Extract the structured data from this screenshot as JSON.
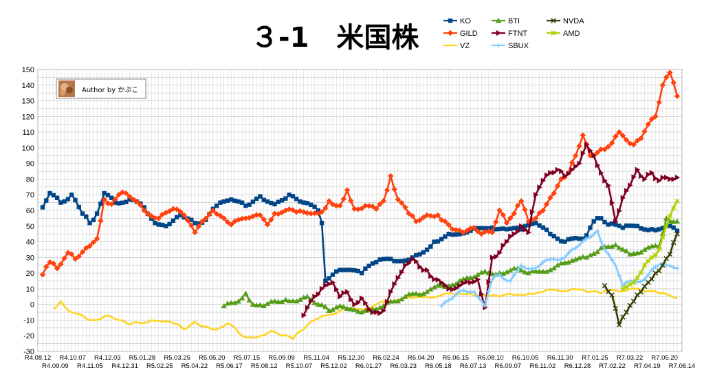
{
  "chart_data": {
    "type": "line",
    "title": "３-1　米国株",
    "author": "Author by かぷこ",
    "ylim": [
      -30,
      150
    ],
    "ystep": 10,
    "n_points": 176,
    "grid": true,
    "legend_position": "top-right",
    "x_tick_labels": [
      "R4.08.12",
      "R4.09.09",
      "R4.10.07",
      "R4.11.05",
      "R4.12.03",
      "R4.12.31",
      "R5.01.28",
      "R5.02.25",
      "R5.03.25",
      "R5.04.22",
      "R5.05.20",
      "R5.06.17",
      "R5.07.15",
      "R5.08.12",
      "R5.09.09",
      "R5.10.07",
      "R5.11.04",
      "R5.12.02",
      "R5.12.30",
      "R6.01.27",
      "R6.02.24",
      "R6.03.23",
      "R6.04.20",
      "R6.05.18",
      "R6.06.15",
      "R6.07.13",
      "R6.08.10",
      "R6.09.07",
      "R6.10.05",
      "R6.11.02",
      "R6.11.30",
      "R6.12.28",
      "R7.01.25",
      "R7.02.22",
      "R7.03.22",
      "R7.04.19",
      "R7.05.20",
      "R7.06.14"
    ],
    "series": [
      {
        "name": "KO",
        "color": "#004586",
        "marker": "square",
        "start": 0,
        "anchors": [
          [
            0,
            62
          ],
          [
            2,
            71
          ],
          [
            5,
            65
          ],
          [
            8,
            70
          ],
          [
            11,
            58
          ],
          [
            13,
            52
          ],
          [
            15,
            58
          ],
          [
            17,
            71
          ],
          [
            20,
            65
          ],
          [
            24,
            67
          ],
          [
            28,
            62
          ],
          [
            31,
            52
          ],
          [
            34,
            50
          ],
          [
            38,
            57
          ],
          [
            42,
            52
          ],
          [
            45,
            54
          ],
          [
            48,
            63
          ],
          [
            52,
            67
          ],
          [
            56,
            63
          ],
          [
            60,
            69
          ],
          [
            64,
            64
          ],
          [
            68,
            70
          ],
          [
            72,
            65
          ],
          [
            76,
            60
          ],
          [
            77,
            52
          ],
          [
            78,
            15
          ],
          [
            82,
            22
          ],
          [
            88,
            20
          ],
          [
            92,
            27
          ],
          [
            96,
            29
          ],
          [
            100,
            28
          ],
          [
            104,
            32
          ],
          [
            108,
            40
          ],
          [
            112,
            45
          ],
          [
            118,
            47
          ],
          [
            124,
            49
          ],
          [
            128,
            48
          ],
          [
            132,
            48
          ],
          [
            136,
            52
          ],
          [
            140,
            45
          ],
          [
            144,
            40
          ],
          [
            148,
            42
          ],
          [
            150,
            44
          ],
          [
            152,
            53
          ],
          [
            154,
            55
          ],
          [
            156,
            51
          ],
          [
            160,
            49
          ],
          [
            164,
            50
          ],
          [
            168,
            48
          ],
          [
            172,
            50
          ],
          [
            175,
            47
          ]
        ]
      },
      {
        "name": "GILD",
        "color": "#ff420e",
        "marker": "diamond",
        "start": 0,
        "anchors": [
          [
            0,
            19
          ],
          [
            2,
            27
          ],
          [
            4,
            23
          ],
          [
            7,
            33
          ],
          [
            9,
            29
          ],
          [
            12,
            36
          ],
          [
            15,
            42
          ],
          [
            17,
            67
          ],
          [
            19,
            64
          ],
          [
            21,
            70
          ],
          [
            23,
            71
          ],
          [
            25,
            67
          ],
          [
            28,
            60
          ],
          [
            32,
            55
          ],
          [
            36,
            61
          ],
          [
            39,
            57
          ],
          [
            42,
            46
          ],
          [
            44,
            53
          ],
          [
            47,
            60
          ],
          [
            50,
            55
          ],
          [
            52,
            51
          ],
          [
            56,
            55
          ],
          [
            60,
            57
          ],
          [
            62,
            51
          ],
          [
            64,
            58
          ],
          [
            67,
            60
          ],
          [
            70,
            59
          ],
          [
            74,
            58
          ],
          [
            77,
            59
          ],
          [
            79,
            66
          ],
          [
            82,
            63
          ],
          [
            84,
            73
          ],
          [
            86,
            61
          ],
          [
            89,
            63
          ],
          [
            92,
            61
          ],
          [
            94,
            66
          ],
          [
            96,
            82
          ],
          [
            98,
            67
          ],
          [
            101,
            58
          ],
          [
            103,
            53
          ],
          [
            106,
            57
          ],
          [
            109,
            57
          ],
          [
            111,
            53
          ],
          [
            113,
            48
          ],
          [
            116,
            46
          ],
          [
            119,
            49
          ],
          [
            121,
            45
          ],
          [
            124,
            46
          ],
          [
            126,
            60
          ],
          [
            128,
            52
          ],
          [
            130,
            58
          ],
          [
            132,
            66
          ],
          [
            134,
            53
          ],
          [
            136,
            55
          ],
          [
            138,
            60
          ],
          [
            141,
            71
          ],
          [
            143,
            80
          ],
          [
            145,
            84
          ],
          [
            147,
            95
          ],
          [
            149,
            108
          ],
          [
            151,
            95
          ],
          [
            153,
            97
          ],
          [
            155,
            99
          ],
          [
            157,
            103
          ],
          [
            159,
            110
          ],
          [
            161,
            105
          ],
          [
            163,
            102
          ],
          [
            165,
            106
          ],
          [
            167,
            115
          ],
          [
            169,
            120
          ],
          [
            171,
            140
          ],
          [
            173,
            148
          ],
          [
            175,
            133
          ]
        ]
      },
      {
        "name": "VZ",
        "color": "#ffd320",
        "marker": "line",
        "start": 3,
        "anchors": [
          [
            3,
            -3
          ],
          [
            5,
            2
          ],
          [
            8,
            -5
          ],
          [
            12,
            -9
          ],
          [
            15,
            -10
          ],
          [
            18,
            -7
          ],
          [
            21,
            -10
          ],
          [
            24,
            -13
          ],
          [
            27,
            -12
          ],
          [
            30,
            -10
          ],
          [
            33,
            -11
          ],
          [
            36,
            -12
          ],
          [
            39,
            -16
          ],
          [
            42,
            -11
          ],
          [
            45,
            -14
          ],
          [
            48,
            -16
          ],
          [
            51,
            -12
          ],
          [
            54,
            -18
          ],
          [
            57,
            -21
          ],
          [
            60,
            -20
          ],
          [
            63,
            -17
          ],
          [
            66,
            -20
          ],
          [
            69,
            -22
          ],
          [
            72,
            -16
          ],
          [
            75,
            -10
          ],
          [
            78,
            -7
          ],
          [
            82,
            -4
          ],
          [
            86,
            -3
          ],
          [
            90,
            -2
          ],
          [
            94,
            2
          ],
          [
            98,
            3
          ],
          [
            102,
            4
          ],
          [
            106,
            5
          ],
          [
            110,
            6
          ],
          [
            114,
            6
          ],
          [
            118,
            7
          ],
          [
            122,
            6
          ],
          [
            126,
            5
          ],
          [
            130,
            6
          ],
          [
            134,
            7
          ],
          [
            138,
            8
          ],
          [
            142,
            9
          ],
          [
            146,
            10
          ],
          [
            150,
            8
          ],
          [
            154,
            7
          ],
          [
            158,
            9
          ],
          [
            162,
            10
          ],
          [
            166,
            8
          ],
          [
            170,
            7
          ],
          [
            175,
            4
          ]
        ]
      },
      {
        "name": "BTI",
        "color": "#579d1c",
        "marker": "triangle",
        "start": 50,
        "anchors": [
          [
            50,
            -1
          ],
          [
            53,
            1
          ],
          [
            56,
            7
          ],
          [
            58,
            0
          ],
          [
            61,
            -1
          ],
          [
            64,
            2
          ],
          [
            67,
            3
          ],
          [
            70,
            2
          ],
          [
            73,
            5
          ],
          [
            76,
            0
          ],
          [
            79,
            -4
          ],
          [
            82,
            -1
          ],
          [
            85,
            -3
          ],
          [
            88,
            -5
          ],
          [
            91,
            -3
          ],
          [
            94,
            -1
          ],
          [
            97,
            2
          ],
          [
            100,
            5
          ],
          [
            103,
            7
          ],
          [
            106,
            8
          ],
          [
            110,
            12
          ],
          [
            114,
            13
          ],
          [
            118,
            17
          ],
          [
            122,
            21
          ],
          [
            126,
            20
          ],
          [
            130,
            23
          ],
          [
            134,
            20
          ],
          [
            138,
            21
          ],
          [
            142,
            25
          ],
          [
            146,
            28
          ],
          [
            150,
            30
          ],
          [
            154,
            36
          ],
          [
            158,
            38
          ],
          [
            162,
            32
          ],
          [
            166,
            35
          ],
          [
            170,
            37
          ],
          [
            172,
            55
          ],
          [
            175,
            53
          ]
        ]
      },
      {
        "name": "FTNT",
        "color": "#7e0021",
        "marker": "triangle-right",
        "start": 72,
        "anchors": [
          [
            72,
            -7
          ],
          [
            75,
            5
          ],
          [
            77,
            10
          ],
          [
            80,
            14
          ],
          [
            82,
            5
          ],
          [
            84,
            8
          ],
          [
            86,
            0
          ],
          [
            88,
            4
          ],
          [
            90,
            -3
          ],
          [
            92,
            -5
          ],
          [
            94,
            -4
          ],
          [
            96,
            8
          ],
          [
            98,
            17
          ],
          [
            100,
            25
          ],
          [
            102,
            29
          ],
          [
            104,
            24
          ],
          [
            106,
            22
          ],
          [
            108,
            16
          ],
          [
            110,
            14
          ],
          [
            112,
            10
          ],
          [
            115,
            12
          ],
          [
            118,
            14
          ],
          [
            120,
            16
          ],
          [
            122,
            -2
          ],
          [
            124,
            30
          ],
          [
            126,
            33
          ],
          [
            128,
            40
          ],
          [
            130,
            45
          ],
          [
            132,
            50
          ],
          [
            134,
            46
          ],
          [
            136,
            70
          ],
          [
            138,
            79
          ],
          [
            140,
            84
          ],
          [
            142,
            86
          ],
          [
            144,
            82
          ],
          [
            146,
            86
          ],
          [
            148,
            90
          ],
          [
            150,
            102
          ],
          [
            152,
            95
          ],
          [
            154,
            84
          ],
          [
            156,
            76
          ],
          [
            158,
            53
          ],
          [
            160,
            68
          ],
          [
            162,
            76
          ],
          [
            164,
            86
          ],
          [
            166,
            80
          ],
          [
            168,
            84
          ],
          [
            170,
            79
          ],
          [
            172,
            81
          ],
          [
            175,
            81
          ]
        ]
      },
      {
        "name": "SBUX",
        "color": "#83caff",
        "marker": "plus",
        "start": 110,
        "anchors": [
          [
            110,
            -1
          ],
          [
            113,
            4
          ],
          [
            116,
            9
          ],
          [
            119,
            8
          ],
          [
            122,
            -1
          ],
          [
            124,
            16
          ],
          [
            126,
            19
          ],
          [
            129,
            15
          ],
          [
            132,
            25
          ],
          [
            135,
            23
          ],
          [
            138,
            27
          ],
          [
            141,
            29
          ],
          [
            144,
            30
          ],
          [
            147,
            36
          ],
          [
            150,
            42
          ],
          [
            153,
            47
          ],
          [
            155,
            35
          ],
          [
            158,
            25
          ],
          [
            160,
            12
          ],
          [
            163,
            15
          ],
          [
            166,
            16
          ],
          [
            169,
            24
          ],
          [
            172,
            25
          ],
          [
            175,
            23
          ]
        ]
      },
      {
        "name": "NVDA",
        "color": "#314004",
        "marker": "x",
        "start": 155,
        "anchors": [
          [
            155,
            12
          ],
          [
            157,
            6
          ],
          [
            159,
            -13
          ],
          [
            161,
            -5
          ],
          [
            163,
            2
          ],
          [
            165,
            8
          ],
          [
            167,
            14
          ],
          [
            169,
            20
          ],
          [
            171,
            25
          ],
          [
            173,
            32
          ],
          [
            175,
            45
          ]
        ]
      },
      {
        "name": "AMD",
        "color": "#aecf00",
        "marker": "star",
        "start": 160,
        "anchors": [
          [
            160,
            10
          ],
          [
            163,
            14
          ],
          [
            166,
            25
          ],
          [
            168,
            30
          ],
          [
            170,
            35
          ],
          [
            172,
            50
          ],
          [
            175,
            66
          ]
        ]
      }
    ]
  }
}
